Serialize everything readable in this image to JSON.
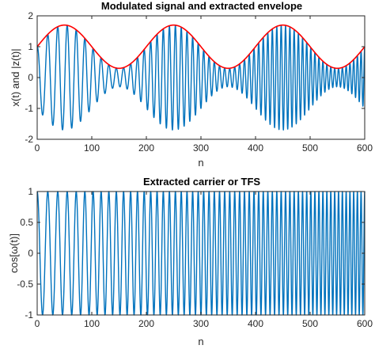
{
  "chart_data": [
    {
      "type": "line",
      "title": "Modulated signal and extracted envelope",
      "xlabel": "n",
      "ylabel": "x(t) and |z(t)|",
      "xlim": [
        0,
        600
      ],
      "ylim": [
        -2,
        2
      ],
      "xticks": [
        0,
        100,
        200,
        300,
        400,
        500,
        600
      ],
      "yticks": [
        -2,
        -1,
        0,
        1,
        2
      ],
      "grid": false,
      "series": [
        {
          "role": "modulated signal",
          "color": "#0072BD",
          "formula": "x(n) = (1 + 0.7*sin(2*pi*n/200)) * cos(phase(n))",
          "envelope_offset": 1,
          "envelope_amplitude": 0.7,
          "envelope_period": 200,
          "carrier_cycles_in_window": 60,
          "carrier_start_frequency_cycles_per_sample": 0.05,
          "carrier_end_frequency_cycles_per_sample": 0.15
        },
        {
          "role": "extracted envelope",
          "color": "#FF0000",
          "formula": "|z(n)| = 1 + 0.7*sin(2*pi*n/200)",
          "key_points": [
            {
              "x": 0,
              "y": 1.0
            },
            {
              "x": 50,
              "y": 1.7
            },
            {
              "x": 150,
              "y": 0.3
            },
            {
              "x": 250,
              "y": 1.7
            },
            {
              "x": 350,
              "y": 0.3
            },
            {
              "x": 450,
              "y": 1.7
            },
            {
              "x": 550,
              "y": 0.3
            },
            {
              "x": 600,
              "y": 1.0
            }
          ]
        }
      ]
    },
    {
      "type": "line",
      "title": "Extracted carrier or TFS",
      "xlabel": "n",
      "ylabel": "cos[ω(t)]",
      "xlim": [
        0,
        600
      ],
      "ylim": [
        -1,
        1
      ],
      "xticks": [
        0,
        100,
        200,
        300,
        400,
        500,
        600
      ],
      "yticks": [
        -1,
        -0.5,
        0,
        0.5,
        1
      ],
      "grid": false,
      "series": [
        {
          "role": "carrier",
          "color": "#0072BD",
          "formula": "cos(phase(n))",
          "carrier_cycles_in_window": 60,
          "carrier_start_frequency_cycles_per_sample": 0.05,
          "carrier_end_frequency_cycles_per_sample": 0.15
        }
      ]
    }
  ]
}
